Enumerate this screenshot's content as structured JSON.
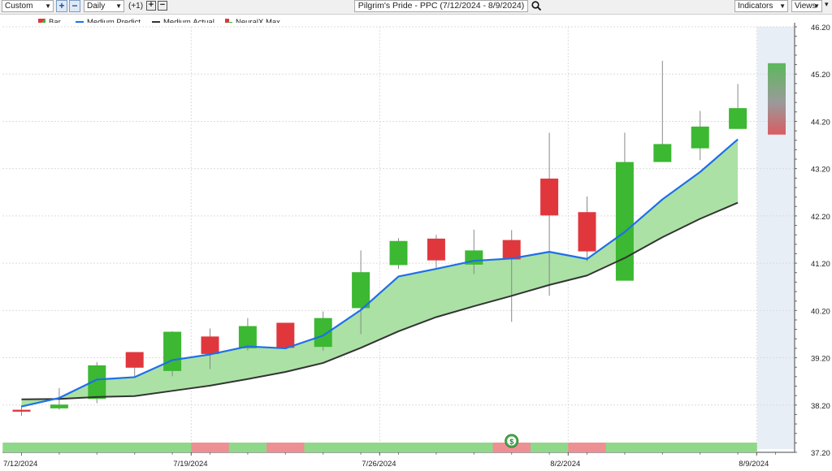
{
  "toolbar": {
    "range_select": "Custom",
    "period_select": "Daily",
    "offset_label": "(+1)",
    "chart_title": "Pilgrim's Pride - PPC (7/12/2024 - 8/9/2024)",
    "indicators_label": "Indicators",
    "views_label": "Views"
  },
  "legend": {
    "bar": "Bar",
    "predict": "Medium.Predict",
    "actual": "Medium.Actual",
    "neural": "NeuralX.Max"
  },
  "colors": {
    "up": "#3cb832",
    "down": "#e0373d",
    "predict": "#1f6fe8",
    "actual": "#333333",
    "fill": "#a6dfa0",
    "signal_green": "#8fd88a",
    "signal_red": "#ee8f93",
    "projection": "#e8eef6"
  },
  "chart_data": {
    "type": "candlestick",
    "title": "Pilgrim's Pride - PPC (7/12/2024 - 8/9/2024)",
    "ylim": [
      37.2,
      46.2
    ],
    "y_ticks": [
      "46.20",
      "45.20",
      "44.20",
      "43.20",
      "42.20",
      "41.20",
      "40.20",
      "39.20",
      "38.20",
      "37.20"
    ],
    "x_tick_labels": [
      "7/12/2024",
      "7/19/2024",
      "7/26/2024",
      "8/2/2024",
      "8/9/2024"
    ],
    "dates": [
      "7/12/2024",
      "7/15/2024",
      "7/16/2024",
      "7/17/2024",
      "7/18/2024",
      "7/19/2024",
      "7/22/2024",
      "7/23/2024",
      "7/24/2024",
      "7/25/2024",
      "7/26/2024",
      "7/29/2024",
      "7/30/2024",
      "7/31/2024",
      "8/1/2024",
      "8/2/2024",
      "8/5/2024",
      "8/6/2024",
      "8/7/2024",
      "8/8/2024"
    ],
    "candles": [
      {
        "o": 38.1,
        "h": 38.2,
        "l": 37.97,
        "c": 38.06
      },
      {
        "o": 38.13,
        "h": 38.56,
        "l": 38.1,
        "c": 38.21
      },
      {
        "o": 38.33,
        "h": 39.11,
        "l": 38.24,
        "c": 39.04
      },
      {
        "o": 39.32,
        "h": 39.32,
        "l": 38.77,
        "c": 38.99
      },
      {
        "o": 38.92,
        "h": 39.76,
        "l": 38.81,
        "c": 39.75
      },
      {
        "o": 39.65,
        "h": 39.82,
        "l": 38.96,
        "c": 39.28
      },
      {
        "o": 39.4,
        "h": 40.04,
        "l": 39.35,
        "c": 39.87
      },
      {
        "o": 39.94,
        "h": 39.94,
        "l": 39.41,
        "c": 39.41
      },
      {
        "o": 39.43,
        "h": 40.18,
        "l": 39.35,
        "c": 40.04
      },
      {
        "o": 40.25,
        "h": 41.47,
        "l": 39.7,
        "c": 41.01
      },
      {
        "o": 41.16,
        "h": 41.73,
        "l": 41.08,
        "c": 41.67
      },
      {
        "o": 41.72,
        "h": 41.8,
        "l": 41.1,
        "c": 41.26
      },
      {
        "o": 41.17,
        "h": 41.91,
        "l": 40.97,
        "c": 41.47
      },
      {
        "o": 41.69,
        "h": 41.9,
        "l": 39.96,
        "c": 41.28
      },
      {
        "o": 42.99,
        "h": 43.96,
        "l": 40.51,
        "c": 42.21
      },
      {
        "o": 42.28,
        "h": 42.61,
        "l": 41.24,
        "c": 41.45
      },
      {
        "o": 40.83,
        "h": 43.96,
        "l": 40.83,
        "c": 43.34
      },
      {
        "o": 43.34,
        "h": 45.48,
        "l": 43.34,
        "c": 43.72
      },
      {
        "o": 43.63,
        "h": 44.42,
        "l": 43.38,
        "c": 44.09
      },
      {
        "o": 44.04,
        "h": 44.99,
        "l": 44.04,
        "c": 44.48
      }
    ],
    "series": [
      {
        "name": "Medium.Predict",
        "values": [
          38.17,
          38.35,
          38.74,
          38.79,
          39.15,
          39.27,
          39.44,
          39.4,
          39.67,
          40.21,
          40.92,
          41.08,
          41.25,
          41.3,
          41.44,
          41.29,
          41.86,
          42.55,
          43.13,
          43.82
        ]
      },
      {
        "name": "Medium.Actual",
        "values": [
          38.32,
          38.33,
          38.37,
          38.39,
          38.5,
          38.61,
          38.75,
          38.9,
          39.09,
          39.41,
          39.76,
          40.06,
          40.29,
          40.51,
          40.74,
          40.94,
          41.31,
          41.75,
          42.14,
          42.48
        ]
      }
    ],
    "neuralx_max": {
      "top": 45.43,
      "bottom": 43.92
    },
    "signals": [
      "up",
      "up",
      "up",
      "up",
      "up",
      "down",
      "up",
      "down",
      "up",
      "up",
      "up",
      "up",
      "up",
      "down",
      "up",
      "down",
      "up",
      "up",
      "up",
      "up"
    ],
    "signal_marker": "$",
    "signal_marker_index": 13
  }
}
